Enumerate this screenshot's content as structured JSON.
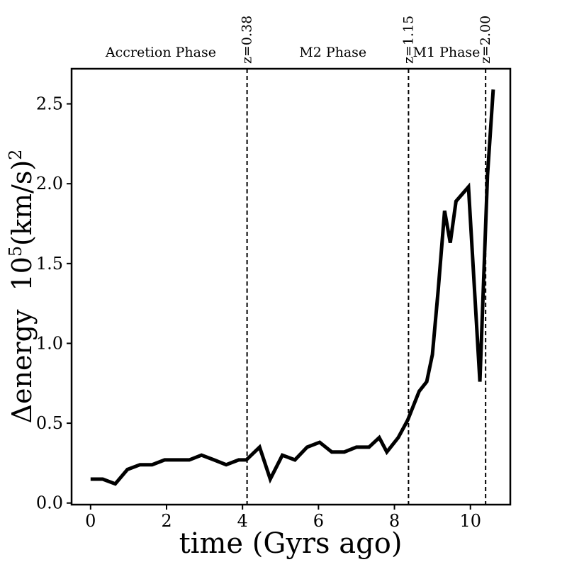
{
  "chart_data": {
    "type": "line",
    "title": "",
    "xlabel": "time (Gyrs ago)",
    "ylabel": {
      "prefix": "Δenergy",
      "scale": "10",
      "scale_exp": "5",
      "unit": "(km/s)",
      "unit_exp": "2"
    },
    "xlim": [
      -0.5,
      11.05
    ],
    "ylim": [
      -0.01,
      2.72
    ],
    "x_ticks": [
      0,
      2,
      4,
      6,
      8,
      10
    ],
    "y_ticks": [
      0.0,
      0.5,
      1.0,
      1.5,
      2.0,
      2.5
    ],
    "x_tick_labels": [
      "0",
      "2",
      "4",
      "6",
      "8",
      "10"
    ],
    "y_tick_labels": [
      "0.0",
      "0.5",
      "1.0",
      "1.5",
      "2.0",
      "2.5"
    ],
    "grid": false,
    "legend": "none",
    "line_color": "#000000",
    "series": [
      {
        "x": [
          0.0,
          0.32,
          0.65,
          0.97,
          1.3,
          1.62,
          1.95,
          2.27,
          2.6,
          2.92,
          3.25,
          3.57,
          3.9,
          4.1,
          4.45,
          4.73,
          5.05,
          5.38,
          5.7,
          6.03,
          6.35,
          6.68,
          7.0,
          7.33,
          7.6,
          7.8,
          8.1,
          8.35,
          8.65,
          8.85,
          9.0,
          9.15,
          9.32,
          9.47,
          9.62,
          9.95,
          10.25,
          10.45,
          10.6
        ],
        "values": [
          0.15,
          0.15,
          0.12,
          0.21,
          0.24,
          0.24,
          0.27,
          0.27,
          0.27,
          0.3,
          0.27,
          0.24,
          0.27,
          0.27,
          0.35,
          0.15,
          0.3,
          0.27,
          0.35,
          0.38,
          0.32,
          0.32,
          0.35,
          0.35,
          0.41,
          0.32,
          0.41,
          0.52,
          0.7,
          0.76,
          0.93,
          1.33,
          1.83,
          1.63,
          1.89,
          1.98,
          0.76,
          2.05,
          2.59
        ]
      }
    ],
    "vlines": [
      {
        "x": 4.12,
        "label": "z=0.38"
      },
      {
        "x": 8.37,
        "label": "z=1.15"
      },
      {
        "x": 10.4,
        "label": "z=2.00"
      }
    ],
    "phases": [
      {
        "label": "Accretion Phase",
        "x": 1.85
      },
      {
        "label": "M2 Phase",
        "x": 6.38
      },
      {
        "label": "M1 Phase",
        "x": 9.37
      }
    ]
  }
}
